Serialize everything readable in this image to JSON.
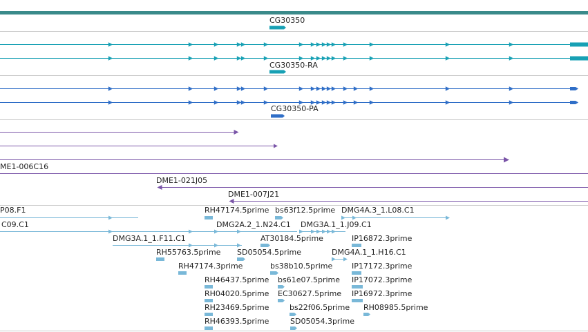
{
  "colors": {
    "top_band": "#3a8a8a",
    "gene": "#17a0b4",
    "transcript_pa": "#2f6ec7",
    "clone_track": "#7a55a8",
    "est": "#79b8d8",
    "divider": "#c9c9c9"
  },
  "gene_track": {
    "gene_label": "CG30350",
    "ra_label": "CG30350-RA",
    "pa_label": "CG30350-PA"
  },
  "clone_track": {
    "labels": [
      "ME1-006C16",
      "DME1-021J05",
      "DME1-007J21"
    ]
  },
  "est_track": {
    "labels": [
      "P08.F1",
      "RH47174.5prime",
      "bs63f12.5prime",
      "DMG4A.3_1.L08.C1",
      "C09.C1",
      "DMG2A.2_1.N24.C1",
      "DMG3A.1_1.J09.C1",
      "DMG3A.1_1.F11.C1",
      "AT30184.5prime",
      "IP16872.3prime",
      "RH55763.5prime",
      "SD05054.5prime",
      "DMG4A.1_1.H16.C1",
      "RH47174.3prime",
      "bs38b10.5prime",
      "IP17172.3prime",
      "RH46437.5prime",
      "bs61e07.5prime",
      "IP17072.3prime",
      "RH04020.5prime",
      "EC30627.5prime",
      "IP16972.3prime",
      "RH23469.5prime",
      "bs22f06.5prime",
      "RH08985.5prime",
      "RH46393.5prime",
      "SD05054.3prime"
    ]
  }
}
